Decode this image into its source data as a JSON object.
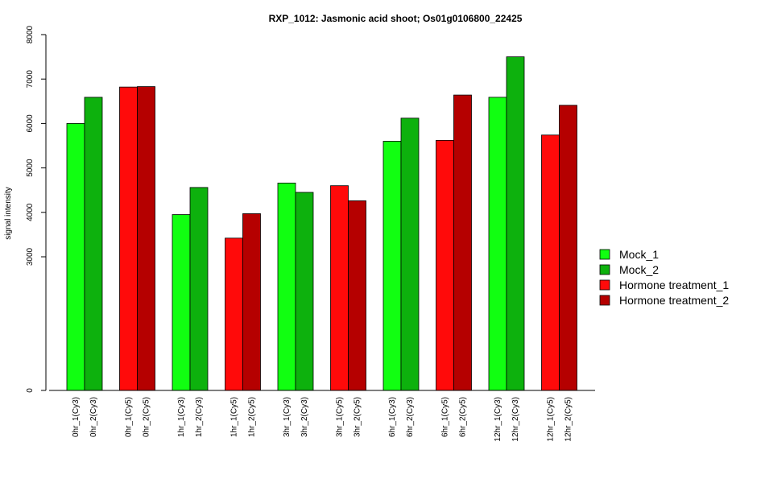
{
  "chart_data": {
    "type": "bar",
    "title": "RXP_1012: Jasmonic acid shoot; Os01g0106800_22425",
    "ylabel": "signal intensity",
    "xlabel": "",
    "y_ticks": [
      0,
      3000,
      4000,
      5000,
      6000,
      7000,
      8000
    ],
    "y_tick_labels": [
      "0",
      "3000",
      "4000",
      "5000",
      "6000",
      "7000",
      "8000"
    ],
    "categories": [
      "0hr_1(Cy3)",
      "0hr_2(Cy3)",
      "0hr_1(Cy5)",
      "0hr_2(Cy5)",
      "1hr_1(Cy3)",
      "1hr_2(Cy3)",
      "1hr_1(Cy5)",
      "1hr_2(Cy5)",
      "3hr_1(Cy3)",
      "3hr_2(Cy3)",
      "3hr_1(Cy5)",
      "3hr_2(Cy5)",
      "6hr_1(Cy3)",
      "6hr_2(Cy3)",
      "6hr_1(Cy5)",
      "6hr_2(Cy5)",
      "12hr_1(Cy3)",
      "12hr_2(Cy3)",
      "12hr_1(Cy5)",
      "12hr_2(Cy5)"
    ],
    "values": [
      6000,
      6590,
      6820,
      6830,
      3950,
      4560,
      3420,
      3970,
      4660,
      4450,
      4600,
      4260,
      5600,
      6120,
      5620,
      6640,
      6590,
      7500,
      5740,
      6410
    ],
    "bar_series": [
      0,
      1,
      2,
      3,
      0,
      1,
      2,
      3,
      0,
      1,
      2,
      3,
      0,
      1,
      2,
      3,
      0,
      1,
      2,
      3
    ],
    "legend": {
      "position": "right",
      "entries": [
        {
          "name": "Mock_1",
          "color": "#11ff11"
        },
        {
          "name": "Mock_2",
          "color": "#0db10d"
        },
        {
          "name": "Hormone treatment_1",
          "color": "#ff0a0a"
        },
        {
          "name": "Hormone treatment_2",
          "color": "#b50000"
        }
      ]
    }
  }
}
